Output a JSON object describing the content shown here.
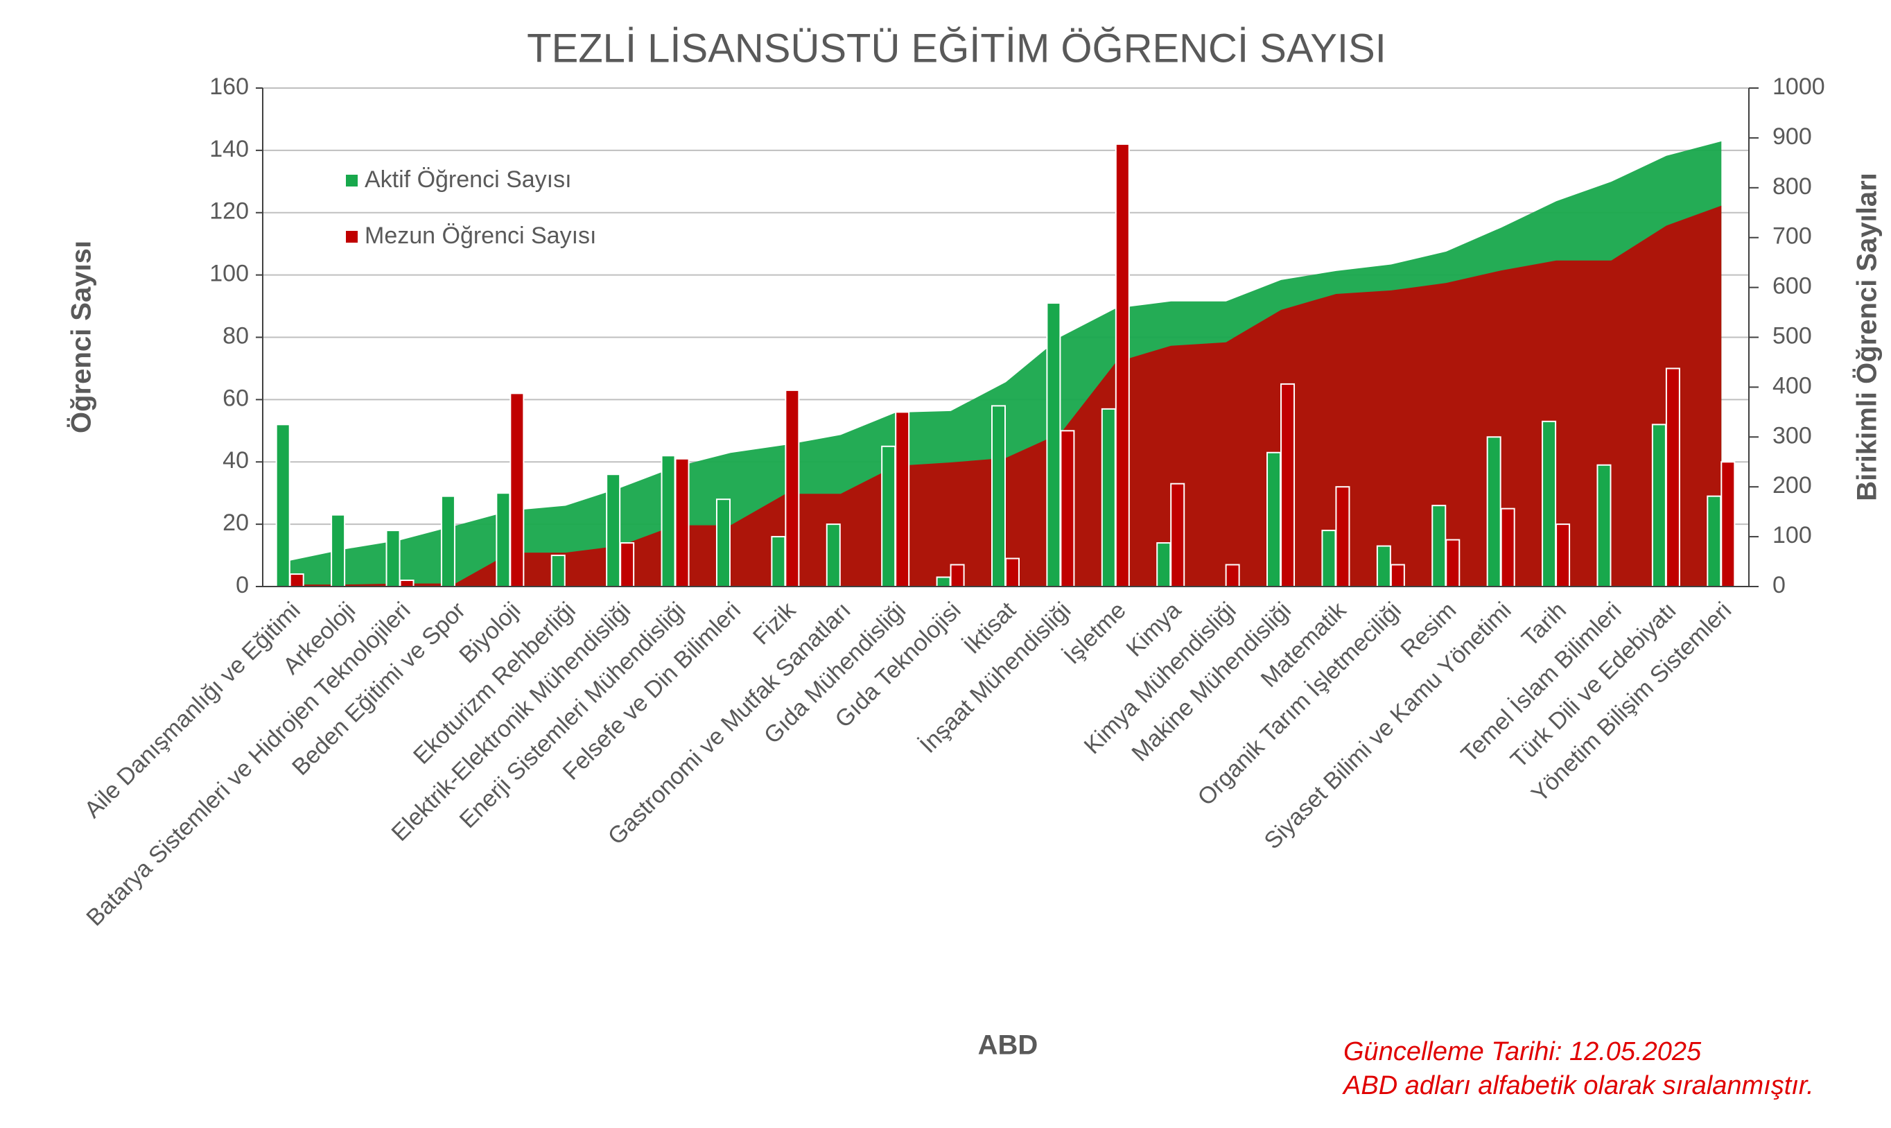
{
  "chart_data": {
    "type": "bar_cumulative_area",
    "title": "TEZLİ LİSANSÜSTÜ EĞİTİM ÖĞRENCİ SAYISI",
    "x_label": "ABD",
    "y_label": "Öğrenci Sayısı",
    "y2_label": "Birikimli Öğrenci Sayıları",
    "annotations": [
      "Güncelleme Tarihi: 12.05.2025",
      "ABD adları alfabetik olarak sıralanmıştır."
    ],
    "categories": [
      "Aile Danışmanlığı ve Eğitimi",
      "Arkeoloji",
      "Batarya Sistemleri ve Hidrojen Teknolojileri",
      "Beden Eğitimi ve Spor",
      "Biyoloji",
      "Ekoturizm Rehberliği",
      "Elektrik-Elektronik Mühendisliği",
      "Enerji Sistemleri Mühendisliği",
      "Felsefe ve Din Bilimleri",
      "Fizik",
      "Gastronomi ve Mutfak Sanatları",
      "Gıda Mühendisliği",
      "Gıda Teknolojisi",
      "İktisat",
      "İnşaat Mühendisliği",
      "İşletme",
      "Kimya",
      "Kimya Mühendisliği",
      "Makine Mühendisliği",
      "Matematik",
      "Organik Tarım İşletmeciliği",
      "Resim",
      "Siyaset Bilimi ve Kamu Yönetimi",
      "Tarih",
      "Temel İslam Bilimleri",
      "Türk Dili ve Edebiyatı",
      "Yönetim Bilişim Sistemleri"
    ],
    "series": [
      {
        "name": "Aktif Öğrenci Sayısı",
        "color": "#18a84c",
        "values": [
          52,
          23,
          18,
          29,
          30,
          10,
          36,
          42,
          28,
          16,
          20,
          45,
          3,
          58,
          91,
          57,
          14,
          0,
          43,
          18,
          13,
          26,
          48,
          53,
          39,
          52,
          29
        ]
      },
      {
        "name": "Mezun Öğrenci Sayısı",
        "color": "#c00000",
        "values": [
          4,
          0,
          2,
          0,
          62,
          0,
          14,
          41,
          0,
          63,
          0,
          56,
          7,
          9,
          50,
          142,
          33,
          7,
          65,
          32,
          7,
          15,
          25,
          20,
          0,
          70,
          40
        ]
      }
    ],
    "ylim": [
      0,
      160
    ],
    "yticks": [
      0,
      20,
      40,
      60,
      80,
      100,
      120,
      140,
      160
    ],
    "y2lim": [
      0,
      1000
    ],
    "y2ticks": [
      0,
      100,
      200,
      300,
      400,
      500,
      600,
      700,
      800,
      900,
      1000
    ],
    "grid": true,
    "legend": "upper left"
  }
}
